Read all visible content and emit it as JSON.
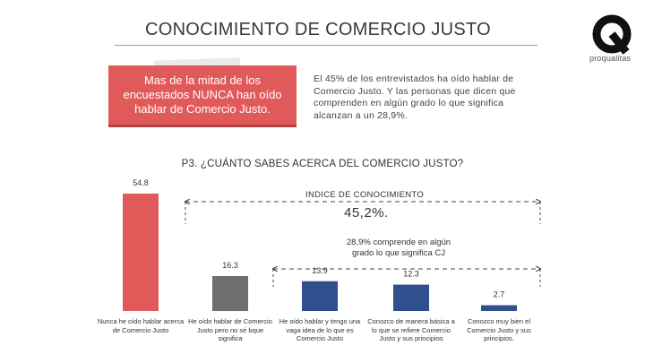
{
  "header": {
    "title": "CONOCIMIENTO DE COMERCIO JUSTO",
    "logo_text": "proqualitas"
  },
  "callout": {
    "highlight": "Mas de la mitad de los encuestados NUNCA han oído hablar de Comercio Justo.",
    "info": "El 45% de los entrevistados ha oído hablar de Comercio Justo. Y las personas que dicen que comprenden en algún grado lo que significa alcanzan a un 28,9%."
  },
  "question": "P3. ¿CUÁNTO SABES ACERCA DEL COMERCIO JUSTO?",
  "index": {
    "label": "INDICE DE CONOCIMIENTO",
    "value": "45,2%."
  },
  "note": "28,9% comprende en algún grado lo que significa CJ",
  "chart_data": {
    "type": "bar",
    "title": "P3. ¿CUÁNTO SABES ACERCA DEL COMERCIO JUSTO?",
    "categories": [
      "Nunca he oído hablar acerca de Comercio Justo",
      "He oído hablar de Comercio Justo pero no sé bque significa",
      "He oído hablar y tengo una vaga idea de lo que es Comercio Justo",
      "Conozco de manera básica a lo que se refiere Comercio Justo y sus principios",
      "Conozco muy bien el Comercio Justo y sus principios."
    ],
    "values": [
      54.8,
      16.3,
      13.9,
      12.3,
      2.7
    ],
    "value_labels": [
      "54.8",
      "16.3",
      "13.9",
      "12.3",
      "2.7"
    ],
    "colors": [
      "#e05a5a",
      "#6f6f6f",
      "#2f4f8f",
      "#2f4f8f",
      "#2f4f8f"
    ],
    "ylim": [
      0,
      54.8
    ],
    "xlabel": "",
    "ylabel": ""
  }
}
